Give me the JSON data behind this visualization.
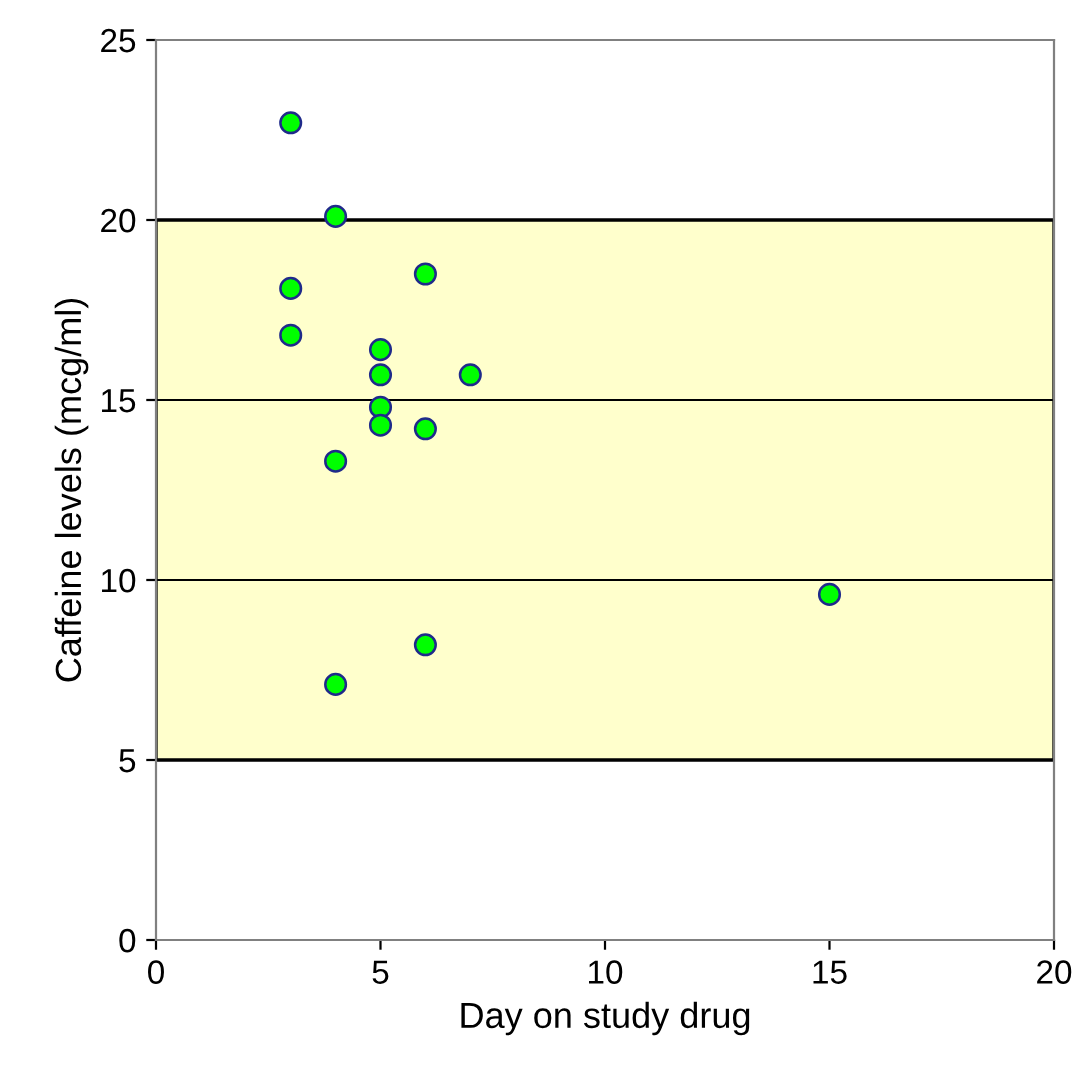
{
  "chart_data": {
    "type": "scatter",
    "xlabel": "Day on study drug",
    "ylabel": "Caffeine levels (mcg/ml)",
    "x": [
      3,
      4,
      3,
      3,
      6,
      5,
      5,
      7,
      5,
      5,
      6,
      4,
      15,
      6,
      4
    ],
    "values": [
      22.7,
      20.1,
      18.1,
      16.8,
      18.5,
      16.4,
      15.7,
      15.7,
      14.8,
      14.3,
      14.2,
      13.3,
      9.6,
      8.2,
      7.1
    ],
    "color": "#00ff00",
    "marker": "circle",
    "xlim": [
      0,
      20
    ],
    "xticks": [
      0,
      5,
      10,
      15,
      20
    ],
    "ylim": [
      0,
      25
    ],
    "yticks": [
      0,
      5,
      10,
      15,
      20,
      25
    ],
    "grid": "y",
    "bands": [
      {
        "axis": "y",
        "from": 5,
        "to": 20,
        "color": "#ffffcc"
      }
    ]
  }
}
